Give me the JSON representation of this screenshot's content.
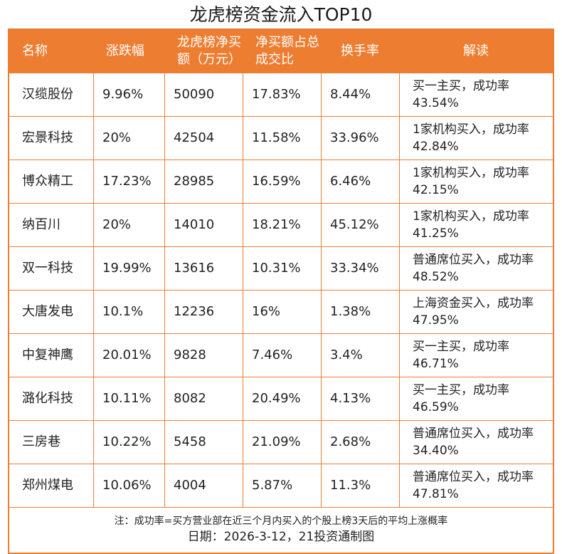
{
  "title": "龙虎榜资金流入TOP10",
  "headers": [
    "名称",
    "涨跌幅",
    "龙虎榜净买额（万元）",
    "净买额占总成交比",
    "换手率",
    "解读"
  ],
  "rows": [
    [
      "汉缆股份",
      "9.96%",
      "50090",
      "17.83%",
      "8.44%",
      "买一主买，成功率43.54%"
    ],
    [
      "宏景科技",
      "20%",
      "42504",
      "11.58%",
      "33.96%",
      "1家机构买入，成功率42.84%"
    ],
    [
      "博众精工",
      "17.23%",
      "28985",
      "16.59%",
      "6.46%",
      "1家机构买入，成功率42.15%"
    ],
    [
      "纳百川",
      "20%",
      "14010",
      "18.21%",
      "45.12%",
      "1家机构买入，成功率41.25%"
    ],
    [
      "双一科技",
      "19.99%",
      "13616",
      "10.31%",
      "33.34%",
      "普通席位买入，成功率48.52%"
    ],
    [
      "大唐发电",
      "10.1%",
      "12236",
      "16%",
      "1.38%",
      "上海资金买入，成功率47.95%"
    ],
    [
      "中复神鹰",
      "20.01%",
      "9828",
      "7.46%",
      "3.4%",
      "买一主买，成功率46.71%"
    ],
    [
      "潞化科技",
      "10.11%",
      "8082",
      "20.49%",
      "4.13%",
      "买一主买，成功率46.59%"
    ],
    [
      "三房巷",
      "10.22%",
      "5458",
      "21.09%",
      "2.68%",
      "普通席位买入，成功率34.40%"
    ],
    [
      "郑州煤电",
      "10.06%",
      "4004",
      "5.87%",
      "11.3%",
      "普通席位买入，成功率47.81%"
    ]
  ],
  "footer": {
    "note": "注：成功率=买方营业部在近三个月内买入的个股上榜3天后的平均上涨概率",
    "date": "日期：2026-3-12，21投资通制图"
  },
  "colors": {
    "accent": "#ed7d31"
  }
}
